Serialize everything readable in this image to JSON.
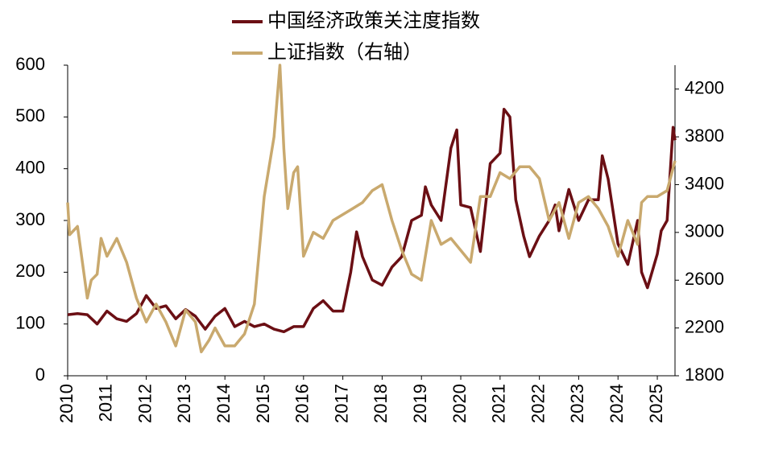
{
  "chart_data": {
    "type": "line",
    "xlim": [
      2010,
      2025.45
    ],
    "xticks": [
      2010,
      2011,
      2012,
      2013,
      2014,
      2015,
      2016,
      2017,
      2018,
      2019,
      2020,
      2021,
      2022,
      2023,
      2024,
      2025
    ],
    "ylim": [
      0,
      600
    ],
    "yticks": [
      0,
      100,
      200,
      300,
      400,
      500,
      600
    ],
    "y2lim": [
      1800,
      4400
    ],
    "y2ticks": [
      1800,
      2200,
      2600,
      3000,
      3400,
      3800,
      4200
    ],
    "series": [
      {
        "name": "中国经济政策关注度指数",
        "color": "#6b0f14",
        "x": [
          2010,
          2010.25,
          2010.5,
          2010.75,
          2011,
          2011.25,
          2011.5,
          2011.75,
          2012,
          2012.25,
          2012.5,
          2012.75,
          2013,
          2013.25,
          2013.5,
          2013.75,
          2014,
          2014.25,
          2014.5,
          2014.75,
          2015,
          2015.25,
          2015.5,
          2015.75,
          2016,
          2016.25,
          2016.5,
          2016.75,
          2017,
          2017.2,
          2017.35,
          2017.5,
          2017.75,
          2018,
          2018.25,
          2018.5,
          2018.75,
          2019,
          2019.1,
          2019.25,
          2019.5,
          2019.75,
          2019.9,
          2020,
          2020.25,
          2020.5,
          2020.75,
          2021,
          2021.1,
          2021.25,
          2021.4,
          2021.6,
          2021.75,
          2022,
          2022.25,
          2022.4,
          2022.5,
          2022.75,
          2023,
          2023.25,
          2023.5,
          2023.6,
          2023.75,
          2024,
          2024.25,
          2024.5,
          2024.6,
          2024.75,
          2025,
          2025.1,
          2025.25,
          2025.4,
          2025.45
        ],
        "values": [
          118,
          120,
          118,
          100,
          125,
          110,
          105,
          120,
          155,
          130,
          135,
          110,
          128,
          115,
          90,
          115,
          130,
          95,
          105,
          95,
          100,
          90,
          85,
          95,
          95,
          130,
          145,
          125,
          125,
          200,
          278,
          230,
          185,
          175,
          210,
          230,
          300,
          310,
          365,
          330,
          300,
          440,
          475,
          330,
          325,
          240,
          410,
          430,
          515,
          500,
          340,
          270,
          230,
          270,
          300,
          330,
          280,
          360,
          300,
          340,
          340,
          425,
          380,
          255,
          215,
          300,
          200,
          170,
          235,
          280,
          300,
          480,
          455
        ]
      },
      {
        "name": "上证指数（右轴）",
        "color": "#c9a96e",
        "axis": "y2",
        "x": [
          2010,
          2010.05,
          2010.25,
          2010.5,
          2010.6,
          2010.75,
          2010.85,
          2011,
          2011.25,
          2011.5,
          2011.75,
          2012,
          2012.25,
          2012.5,
          2012.75,
          2013,
          2013.25,
          2013.4,
          2013.6,
          2013.75,
          2014,
          2014.25,
          2014.5,
          2014.75,
          2015,
          2015.25,
          2015.4,
          2015.5,
          2015.6,
          2015.75,
          2015.85,
          2016,
          2016.25,
          2016.5,
          2016.75,
          2017,
          2017.25,
          2017.5,
          2017.75,
          2018,
          2018.25,
          2018.5,
          2018.75,
          2019,
          2019.25,
          2019.5,
          2019.75,
          2020,
          2020.25,
          2020.5,
          2020.75,
          2021,
          2021.25,
          2021.5,
          2021.75,
          2022,
          2022.25,
          2022.5,
          2022.75,
          2023,
          2023.25,
          2023.5,
          2023.75,
          2024,
          2024.25,
          2024.5,
          2024.6,
          2024.75,
          2025,
          2025.25,
          2025.45
        ],
        "values": [
          3250,
          2980,
          3050,
          2450,
          2600,
          2650,
          2950,
          2800,
          2950,
          2750,
          2450,
          2250,
          2400,
          2250,
          2050,
          2350,
          2250,
          2000,
          2100,
          2200,
          2050,
          2050,
          2150,
          2400,
          3300,
          3800,
          4400,
          3700,
          3200,
          3500,
          3550,
          2800,
          3000,
          2950,
          3100,
          3150,
          3200,
          3250,
          3350,
          3400,
          3100,
          2850,
          2650,
          2600,
          3100,
          2900,
          2950,
          2850,
          2750,
          3300,
          3300,
          3500,
          3450,
          3550,
          3550,
          3450,
          3100,
          3250,
          2950,
          3250,
          3300,
          3200,
          3050,
          2800,
          3100,
          2900,
          3250,
          3300,
          3300,
          3350,
          3600
        ]
      }
    ]
  }
}
